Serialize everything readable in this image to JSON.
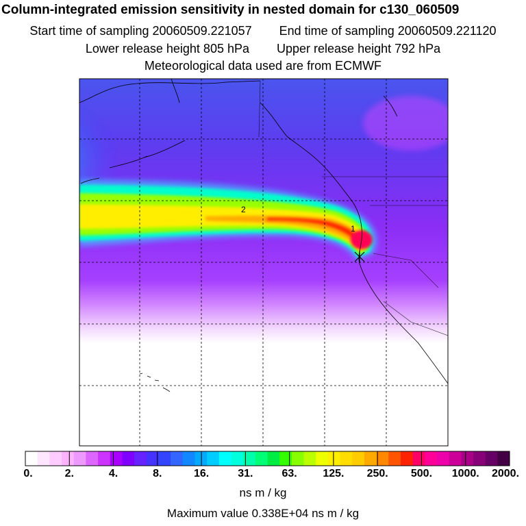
{
  "header": {
    "title": "Column-integrated emission sensitivity in nested domain for c130_060509",
    "start_label": "Start time of sampling 20060509.221057",
    "end_label": "End time of sampling 20060509.221120",
    "lower_label": "Lower release height  805 hPa",
    "upper_label": "Upper release height  792 hPa",
    "met_label": "Meteorological data used are from ECMWF"
  },
  "map": {
    "contour_labels": [
      "2",
      "1"
    ],
    "colors": {
      "background_low": "#9966ff",
      "plume_core": "#ff2200",
      "plume_edge": "#00ffcc",
      "release_point": "#000000"
    }
  },
  "colorbar": {
    "tick_labels": [
      "0.",
      "2.",
      "4.",
      "8.",
      "16.",
      "31.",
      "63.",
      "125.",
      "250.",
      "500.",
      "1000.",
      "2000."
    ],
    "units": "ns m / kg",
    "colors": [
      "#ffffff",
      "#ffe6ff",
      "#ffccff",
      "#ffb3ff",
      "#ee99ff",
      "#dd66ff",
      "#cc33ff",
      "#aa00ff",
      "#8000ff",
      "#6622ff",
      "#4433ff",
      "#3344ff",
      "#3366ff",
      "#1188ff",
      "#00aaff",
      "#00ccff",
      "#00ffff",
      "#00ffdd",
      "#00ffaa",
      "#00ff77",
      "#00ee44",
      "#33ff00",
      "#88ff00",
      "#bbff00",
      "#eeff00",
      "#ffee00",
      "#ffdd00",
      "#ffcc00",
      "#ffaa00",
      "#ff8800",
      "#ff5500",
      "#ff2200",
      "#ff0066",
      "#ff0099",
      "#ee00aa",
      "#cc0099",
      "#aa0088",
      "#880077",
      "#660066",
      "#440044"
    ]
  },
  "footer": {
    "max_value": "Maximum value  0.338E+04 ns m / kg"
  }
}
